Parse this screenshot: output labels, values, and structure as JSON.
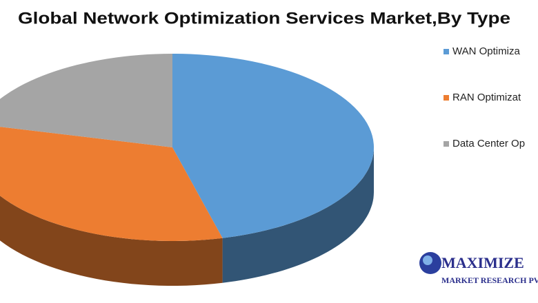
{
  "chart_data": {
    "type": "pie3d",
    "title": "Global Network Optimization Services Market,By Type",
    "categories": [
      "WAN Optimiza",
      "RAN Optimizat",
      "Data Center Op"
    ],
    "values": [
      46,
      33,
      21
    ],
    "colors": [
      "#5b9bd5",
      "#ed7d31",
      "#a5a5a5"
    ],
    "legend": "right"
  },
  "watermark": {
    "line1": "MAXIMIZE",
    "line2": "MARKET RESEARCH PV"
  }
}
